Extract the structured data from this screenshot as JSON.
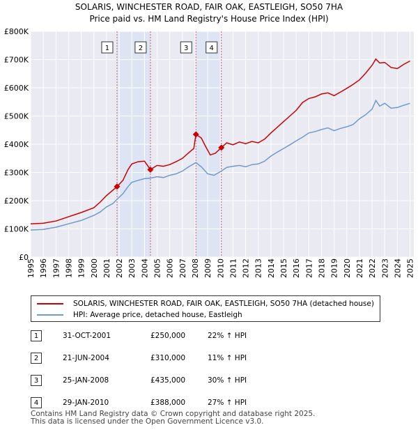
{
  "chart_data": {
    "type": "line",
    "title": "SOLARIS, WINCHESTER ROAD, FAIR OAK, EASTLEIGH, SO50 7HA",
    "subtitle": "Price paid vs. HM Land Registry's House Price Index (HPI)",
    "xlim": [
      1995,
      2025.3
    ],
    "ylim": [
      0,
      800000
    ],
    "y_ticks": [
      {
        "value": 0,
        "label": "£0"
      },
      {
        "value": 100000,
        "label": "£100K"
      },
      {
        "value": 200000,
        "label": "£200K"
      },
      {
        "value": 300000,
        "label": "£300K"
      },
      {
        "value": 400000,
        "label": "£400K"
      },
      {
        "value": 500000,
        "label": "£500K"
      },
      {
        "value": 600000,
        "label": "£600K"
      },
      {
        "value": 700000,
        "label": "£700K"
      },
      {
        "value": 800000,
        "label": "£800K"
      }
    ],
    "x_ticks": [
      "1995",
      "1996",
      "1997",
      "1998",
      "1999",
      "2000",
      "2001",
      "2002",
      "2003",
      "2004",
      "2005",
      "2006",
      "2007",
      "2008",
      "2009",
      "2010",
      "2011",
      "2012",
      "2013",
      "2014",
      "2015",
      "2016",
      "2017",
      "2018",
      "2019",
      "2020",
      "2021",
      "2022",
      "2023",
      "2024",
      "2025"
    ],
    "grid": true,
    "series": [
      {
        "name": "SOLARIS, WINCHESTER ROAD, FAIR OAK, EASTLEIGH, SO50 7HA (detached house)",
        "color": "#cc0000",
        "points": [
          [
            1995.0,
            118000
          ],
          [
            1996.0,
            120000
          ],
          [
            1997.0,
            128000
          ],
          [
            1998.0,
            143000
          ],
          [
            1999.0,
            158000
          ],
          [
            2000.0,
            175000
          ],
          [
            2000.5,
            195000
          ],
          [
            2001.0,
            218000
          ],
          [
            2001.5,
            237000
          ],
          [
            2001.83,
            250000
          ],
          [
            2002.3,
            272000
          ],
          [
            2002.7,
            310000
          ],
          [
            2003.0,
            330000
          ],
          [
            2003.5,
            338000
          ],
          [
            2004.0,
            340000
          ],
          [
            2004.47,
            310000
          ],
          [
            2005.0,
            325000
          ],
          [
            2005.5,
            322000
          ],
          [
            2006.0,
            328000
          ],
          [
            2006.5,
            338000
          ],
          [
            2007.0,
            350000
          ],
          [
            2007.5,
            370000
          ],
          [
            2007.9,
            385000
          ],
          [
            2008.07,
            435000
          ],
          [
            2008.5,
            422000
          ],
          [
            2008.8,
            395000
          ],
          [
            2009.2,
            362000
          ],
          [
            2009.6,
            368000
          ],
          [
            2010.08,
            388000
          ],
          [
            2010.5,
            405000
          ],
          [
            2011.0,
            398000
          ],
          [
            2011.5,
            408000
          ],
          [
            2012.0,
            402000
          ],
          [
            2012.5,
            410000
          ],
          [
            2013.0,
            405000
          ],
          [
            2013.5,
            418000
          ],
          [
            2014.0,
            440000
          ],
          [
            2014.5,
            460000
          ],
          [
            2015.0,
            480000
          ],
          [
            2015.5,
            500000
          ],
          [
            2016.0,
            520000
          ],
          [
            2016.5,
            548000
          ],
          [
            2017.0,
            562000
          ],
          [
            2017.5,
            568000
          ],
          [
            2018.0,
            578000
          ],
          [
            2018.5,
            582000
          ],
          [
            2019.0,
            572000
          ],
          [
            2019.5,
            585000
          ],
          [
            2020.0,
            598000
          ],
          [
            2020.5,
            612000
          ],
          [
            2021.0,
            628000
          ],
          [
            2021.5,
            652000
          ],
          [
            2022.0,
            680000
          ],
          [
            2022.3,
            702000
          ],
          [
            2022.6,
            688000
          ],
          [
            2023.0,
            690000
          ],
          [
            2023.5,
            672000
          ],
          [
            2024.0,
            668000
          ],
          [
            2024.5,
            683000
          ],
          [
            2025.0,
            695000
          ]
        ]
      },
      {
        "name": "HPI: Average price, detached house, Eastleigh",
        "color": "#6f99d0",
        "points": [
          [
            1995.0,
            96000
          ],
          [
            1996.0,
            98000
          ],
          [
            1997.0,
            106000
          ],
          [
            1998.0,
            118000
          ],
          [
            1999.0,
            130000
          ],
          [
            2000.0,
            148000
          ],
          [
            2000.5,
            160000
          ],
          [
            2001.0,
            178000
          ],
          [
            2001.5,
            190000
          ],
          [
            2001.83,
            205000
          ],
          [
            2002.3,
            225000
          ],
          [
            2002.7,
            250000
          ],
          [
            2003.0,
            265000
          ],
          [
            2003.5,
            272000
          ],
          [
            2004.0,
            278000
          ],
          [
            2004.47,
            280000
          ],
          [
            2005.0,
            285000
          ],
          [
            2005.5,
            282000
          ],
          [
            2006.0,
            290000
          ],
          [
            2006.5,
            295000
          ],
          [
            2007.0,
            305000
          ],
          [
            2007.5,
            320000
          ],
          [
            2008.07,
            335000
          ],
          [
            2008.5,
            320000
          ],
          [
            2009.0,
            295000
          ],
          [
            2009.5,
            290000
          ],
          [
            2010.08,
            305000
          ],
          [
            2010.5,
            318000
          ],
          [
            2011.0,
            322000
          ],
          [
            2011.5,
            325000
          ],
          [
            2012.0,
            320000
          ],
          [
            2012.5,
            328000
          ],
          [
            2013.0,
            330000
          ],
          [
            2013.5,
            340000
          ],
          [
            2014.0,
            358000
          ],
          [
            2014.5,
            372000
          ],
          [
            2015.0,
            385000
          ],
          [
            2015.5,
            398000
          ],
          [
            2016.0,
            412000
          ],
          [
            2016.5,
            425000
          ],
          [
            2017.0,
            440000
          ],
          [
            2017.5,
            445000
          ],
          [
            2018.0,
            452000
          ],
          [
            2018.5,
            458000
          ],
          [
            2019.0,
            448000
          ],
          [
            2019.5,
            456000
          ],
          [
            2020.0,
            462000
          ],
          [
            2020.5,
            470000
          ],
          [
            2021.0,
            490000
          ],
          [
            2021.5,
            505000
          ],
          [
            2022.0,
            525000
          ],
          [
            2022.3,
            555000
          ],
          [
            2022.6,
            535000
          ],
          [
            2023.0,
            545000
          ],
          [
            2023.5,
            528000
          ],
          [
            2024.0,
            530000
          ],
          [
            2024.5,
            538000
          ],
          [
            2025.0,
            545000
          ]
        ]
      }
    ],
    "sales": [
      {
        "num": "1",
        "x": 2001.83,
        "price": 250000,
        "date": "31-OCT-2001",
        "price_label": "£250,000",
        "hpi": "22% ↑ HPI"
      },
      {
        "num": "2",
        "x": 2004.47,
        "price": 310000,
        "date": "21-JUN-2004",
        "price_label": "£310,000",
        "hpi": "11% ↑ HPI"
      },
      {
        "num": "3",
        "x": 2008.07,
        "price": 435000,
        "date": "25-JAN-2008",
        "price_label": "£435,000",
        "hpi": "30% ↑ HPI"
      },
      {
        "num": "4",
        "x": 2010.08,
        "price": 388000,
        "date": "29-JAN-2010",
        "price_label": "£388,000",
        "hpi": "27% ↑ HPI"
      }
    ],
    "shaded_spans": [
      [
        2001.83,
        2004.47
      ],
      [
        2008.07,
        2010.08
      ]
    ]
  },
  "legend": {
    "property_label": "SOLARIS, WINCHESTER ROAD, FAIR OAK, EASTLEIGH, SO50 7HA (detached house)",
    "hpi_label": "HPI: Average price, detached house, Eastleigh"
  },
  "footer": {
    "line1": "Contains HM Land Registry data © Crown copyright and database right 2025.",
    "line2": "This data is licensed under the Open Government Licence v3.0."
  }
}
